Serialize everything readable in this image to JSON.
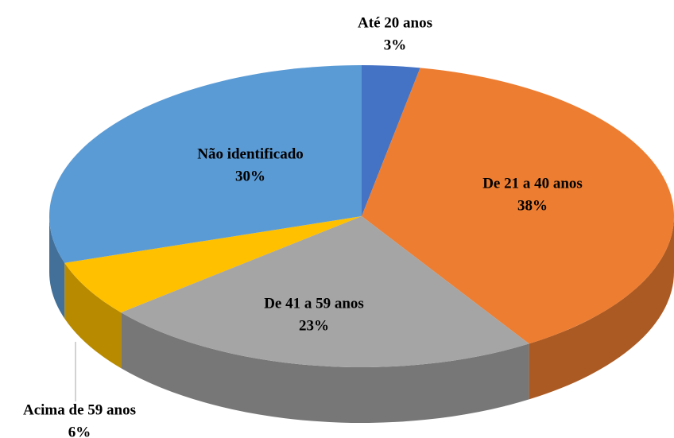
{
  "chart_data": {
    "type": "pie",
    "categories": [
      "Até 20 anos",
      "De 21 a 40 anos",
      "De 41 a 59 anos",
      "Acima de 59 anos",
      "Não identificado"
    ],
    "values": [
      3,
      38,
      23,
      6,
      30
    ],
    "value_labels": [
      "3%",
      "38%",
      "23%",
      "6%",
      "30%"
    ],
    "colors": [
      "#4472c4",
      "#ed7d31",
      "#a5a5a5",
      "#ffc000",
      "#5b9bd5"
    ]
  }
}
